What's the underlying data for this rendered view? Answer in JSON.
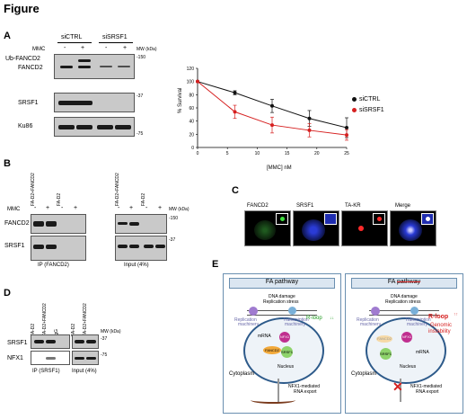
{
  "figure_title": "Figure",
  "panelA": {
    "letter": "A",
    "groups": [
      "siCTRL",
      "siSRSF1"
    ],
    "mmc_label": "MMC",
    "mmc_signs": [
      "-",
      "+",
      "-",
      "+"
    ],
    "mw_label": "MW (kDa)",
    "row_labels": [
      "Ub-FANCD2",
      "FANCD2",
      "SRSF1",
      "Ku86"
    ],
    "mw_marks": [
      "-150",
      "-37",
      "-75"
    ]
  },
  "chart_data": {
    "type": "line",
    "x": [
      0,
      6.25,
      12.5,
      18.75,
      25
    ],
    "series": [
      {
        "name": "siCTRL",
        "values": [
          100,
          83,
          63,
          44,
          30
        ],
        "errors": [
          0,
          3,
          10,
          12,
          15
        ],
        "color": "#111111"
      },
      {
        "name": "siSRSF1",
        "values": [
          100,
          54,
          34,
          26,
          19
        ],
        "errors": [
          0,
          10,
          12,
          10,
          8
        ],
        "color": "#d62020"
      }
    ],
    "xlabel": "[MMC] nM",
    "ylabel": "% Survival",
    "xlim": [
      0,
      25
    ],
    "ylim": [
      0,
      120
    ],
    "xticks": [
      "0",
      "5",
      "10",
      "15",
      "20",
      "25"
    ],
    "yticks": [
      "0",
      "20",
      "40",
      "60",
      "80",
      "100",
      "120"
    ],
    "grid": false,
    "legend": "right"
  },
  "panelB": {
    "letter": "B",
    "lanes_ip": [
      "FA-D2+FANCD2",
      "FA-D2"
    ],
    "lanes_input": [
      "FA-D2+FANCD2",
      "FA-D2"
    ],
    "mmc_label": "MMC",
    "mmc_signs": [
      "-",
      "+",
      "-",
      "+",
      "-",
      "+",
      "-",
      "+"
    ],
    "mw_label": "MW (kDa)",
    "row_labels": [
      "FANCD2",
      "SRSF1"
    ],
    "mw_marks": [
      "-150",
      "-37"
    ],
    "ip_label": "IP (FANCD2)",
    "input_label": "Input (4%)"
  },
  "panelC": {
    "letter": "C",
    "labels": [
      "FANCD2",
      "SRSF1",
      "TA-KR",
      "Merge"
    ],
    "colors": [
      "#3fe03f",
      "#3f55ff",
      "#ff2a2a",
      "#c9c9ff"
    ]
  },
  "panelD": {
    "letter": "D",
    "lanes": [
      "FA-D2",
      "FA-D2+FANCD2",
      "IgG",
      "FA-D2",
      "FA-D2+FANCD2"
    ],
    "mw_label": "MW (kDa)",
    "row_labels": [
      "SRSF1",
      "NFX1"
    ],
    "mw_marks": [
      "-37",
      "-75"
    ],
    "ip_label": "IP (SRSF1)",
    "input_label": "Input (4%)"
  },
  "panelE": {
    "letter": "E",
    "left": {
      "title": "FA pathway",
      "stress": [
        "DNA damage",
        "Replication stress"
      ],
      "rep": [
        "Replication",
        "machinery"
      ],
      "trans": [
        "Transcription",
        "machinery"
      ],
      "rloop": "R-loop",
      "rloop_mark": "↓↓",
      "mrna": "mRNA",
      "nfx1": "NFX1",
      "fancd2": "FANCD2",
      "srsf1": "SRSF1",
      "nucleus": "Nucleus",
      "cytoplasm": "Cytoplasm",
      "export": [
        "NFX1-mediated",
        "RNA export"
      ]
    },
    "right": {
      "title_prefix": "FA",
      "title_struck": "pathway",
      "stress": [
        "DNA damage",
        "Replication stress"
      ],
      "rep": [
        "Replication",
        "machinery"
      ],
      "trans": [
        "Transcription",
        "machinery"
      ],
      "rloop": "R-loop",
      "rloop_mark": "↑↑",
      "genomic": [
        "Genomic",
        "instability"
      ],
      "mrna": "mRNA",
      "nfx1": "NFX1",
      "fancd2": "FANCD2",
      "srsf1": "SRSF1",
      "nucleus": "Nucleus",
      "cytoplasm": "Cytoplasm",
      "export": [
        "NFX1-mediated",
        "RNA export"
      ]
    }
  }
}
